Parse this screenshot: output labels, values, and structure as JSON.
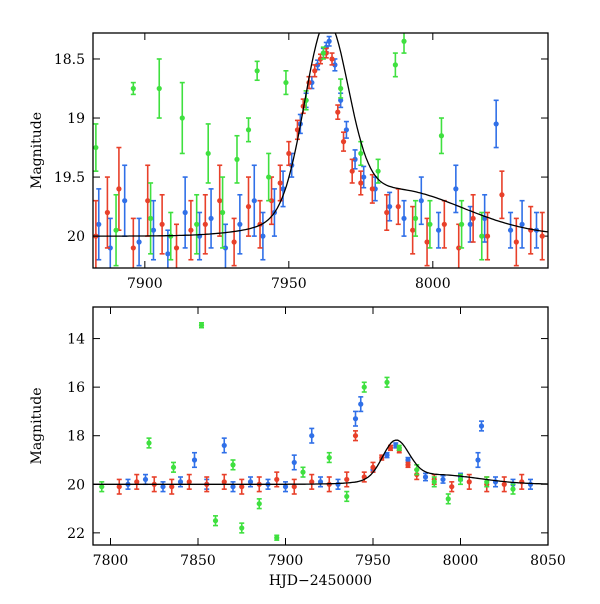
{
  "chart_data": [
    {
      "type": "scatter",
      "title": "",
      "xlabel": "",
      "ylabel": "Magnitude",
      "xlim": [
        7882,
        8040
      ],
      "ylim": [
        20.27,
        18.28
      ],
      "y_inverted": true,
      "xticks": [
        7900,
        7950,
        8000
      ],
      "yticks": [
        18.5,
        19,
        19.5,
        20
      ],
      "ytick_labels": [
        "18.5",
        "19",
        "19.5",
        "20"
      ],
      "series": [
        {
          "color": "#3070e8",
          "points": [
            [
              7884,
              19.9,
              0.3
            ],
            [
              7888,
              20.1,
              0.25
            ],
            [
              7893,
              19.7,
              0.3
            ],
            [
              7898,
              20.05,
              0.2
            ],
            [
              7903,
              19.95,
              0.25
            ],
            [
              7908,
              20.15,
              0.2
            ],
            [
              7914,
              19.8,
              0.3
            ],
            [
              7919,
              20.0,
              0.2
            ],
            [
              7923,
              19.85,
              0.25
            ],
            [
              7928,
              20.1,
              0.2
            ],
            [
              7933,
              19.9,
              0.25
            ],
            [
              7938,
              19.7,
              0.3
            ],
            [
              7941,
              20.0,
              0.2
            ],
            [
              7945,
              19.8,
              0.2
            ],
            [
              7948,
              19.6,
              0.15
            ],
            [
              7951,
              19.4,
              0.1
            ],
            [
              7954,
              19.05,
              0.08
            ],
            [
              7956,
              18.85,
              0.06
            ],
            [
              7958,
              18.7,
              0.05
            ],
            [
              7960,
              18.55,
              0.04
            ],
            [
              7962,
              18.45,
              0.04
            ],
            [
              7963,
              18.4,
              0.04
            ],
            [
              7964,
              18.35,
              0.04
            ],
            [
              7966,
              18.55,
              0.05
            ],
            [
              7968,
              18.85,
              0.06
            ],
            [
              7970,
              19.1,
              0.07
            ],
            [
              7973,
              19.35,
              0.08
            ],
            [
              7976,
              19.5,
              0.09
            ],
            [
              7980,
              19.6,
              0.1
            ],
            [
              7985,
              19.75,
              0.12
            ],
            [
              7990,
              19.85,
              0.15
            ],
            [
              7996,
              19.7,
              0.2
            ],
            [
              8002,
              19.95,
              0.15
            ],
            [
              8008,
              19.6,
              0.2
            ],
            [
              8013,
              19.9,
              0.15
            ],
            [
              8018,
              19.85,
              0.2
            ],
            [
              8022,
              19.05,
              0.2
            ],
            [
              8027,
              19.95,
              0.15
            ],
            [
              8031,
              19.9,
              0.2
            ],
            [
              8036,
              19.95,
              0.15
            ]
          ]
        },
        {
          "color": "#e8402a",
          "points": [
            [
              7883,
              20.0,
              0.3
            ],
            [
              7887,
              19.8,
              0.3
            ],
            [
              7891,
              19.6,
              0.35
            ],
            [
              7896,
              20.1,
              0.25
            ],
            [
              7901,
              19.7,
              0.3
            ],
            [
              7906,
              19.9,
              0.25
            ],
            [
              7911,
              20.1,
              0.2
            ],
            [
              7916,
              19.95,
              0.25
            ],
            [
              7921,
              19.9,
              0.25
            ],
            [
              7926,
              19.7,
              0.3
            ],
            [
              7931,
              20.05,
              0.2
            ],
            [
              7936,
              19.75,
              0.25
            ],
            [
              7940,
              19.9,
              0.2
            ],
            [
              7944,
              19.7,
              0.2
            ],
            [
              7947,
              19.55,
              0.15
            ],
            [
              7950,
              19.3,
              0.1
            ],
            [
              7953,
              19.1,
              0.08
            ],
            [
              7955,
              18.9,
              0.06
            ],
            [
              7957,
              18.7,
              0.05
            ],
            [
              7959,
              18.6,
              0.05
            ],
            [
              7961,
              18.5,
              0.04
            ],
            [
              7963,
              18.45,
              0.04
            ],
            [
              7965,
              18.5,
              0.05
            ],
            [
              7967,
              18.95,
              0.06
            ],
            [
              7969,
              19.2,
              0.08
            ],
            [
              7972,
              19.45,
              0.1
            ],
            [
              7975,
              19.55,
              0.1
            ],
            [
              7979,
              19.6,
              0.12
            ],
            [
              7984,
              19.8,
              0.15
            ],
            [
              7988,
              19.75,
              0.15
            ],
            [
              7993,
              19.95,
              0.2
            ],
            [
              7998,
              20.05,
              0.2
            ],
            [
              8004,
              19.9,
              0.2
            ],
            [
              8009,
              20.1,
              0.2
            ],
            [
              8014,
              19.85,
              0.2
            ],
            [
              8019,
              20.0,
              0.2
            ],
            [
              8024,
              19.65,
              0.2
            ],
            [
              8029,
              20.05,
              0.2
            ],
            [
              8034,
              19.95,
              0.2
            ],
            [
              8038,
              20.0,
              0.2
            ]
          ]
        },
        {
          "color": "#3fe03f",
          "points": [
            [
              7883,
              19.25,
              0.2
            ],
            [
              7890,
              19.95,
              0.3
            ],
            [
              7896,
              18.75,
              0.05
            ],
            [
              7902,
              19.85,
              0.3
            ],
            [
              7905,
              18.75,
              0.25
            ],
            [
              7909,
              20.0,
              0.2
            ],
            [
              7913,
              19.0,
              0.3
            ],
            [
              7918,
              19.9,
              0.25
            ],
            [
              7922,
              19.3,
              0.25
            ],
            [
              7927,
              19.8,
              0.3
            ],
            [
              7932,
              19.35,
              0.2
            ],
            [
              7936,
              19.1,
              0.1
            ],
            [
              7939,
              18.6,
              0.08
            ],
            [
              7943,
              19.5,
              0.2
            ],
            [
              7949,
              18.7,
              0.1
            ],
            [
              7956,
              18.85,
              0.08
            ],
            [
              7962,
              18.45,
              0.05
            ],
            [
              7968,
              18.75,
              0.08
            ],
            [
              7975,
              19.3,
              0.1
            ],
            [
              7981,
              19.45,
              0.1
            ],
            [
              7987,
              18.55,
              0.1
            ],
            [
              7990,
              18.35,
              0.1
            ],
            [
              7994,
              19.85,
              0.15
            ],
            [
              7999,
              19.9,
              0.2
            ],
            [
              8003,
              19.15,
              0.15
            ],
            [
              8010,
              19.9,
              0.2
            ],
            [
              8017,
              20.0,
              0.2
            ]
          ]
        }
      ]
    },
    {
      "type": "scatter",
      "title": "",
      "xlabel": "HJD−2450000",
      "ylabel": "Magnitude",
      "xlim": [
        7790,
        8050
      ],
      "ylim": [
        22.5,
        12.7
      ],
      "y_inverted": true,
      "xticks": [
        7800,
        7850,
        7900,
        7950,
        8000,
        8050
      ],
      "yticks": [
        14,
        16,
        18,
        20,
        22
      ],
      "ytick_labels": [
        "14",
        "16",
        "18",
        "20",
        "22"
      ],
      "series": [
        {
          "color": "#3070e8",
          "points": [
            [
              7810,
              20.0,
              0.2
            ],
            [
              7820,
              19.8,
              0.2
            ],
            [
              7830,
              20.1,
              0.2
            ],
            [
              7840,
              19.9,
              0.2
            ],
            [
              7848,
              19.0,
              0.3
            ],
            [
              7855,
              20.0,
              0.2
            ],
            [
              7865,
              18.4,
              0.3
            ],
            [
              7870,
              20.1,
              0.2
            ],
            [
              7880,
              19.9,
              0.2
            ],
            [
              7890,
              20.0,
              0.2
            ],
            [
              7900,
              20.1,
              0.2
            ],
            [
              7905,
              19.1,
              0.3
            ],
            [
              7915,
              18.0,
              0.3
            ],
            [
              7920,
              19.9,
              0.2
            ],
            [
              7930,
              20.0,
              0.2
            ],
            [
              7940,
              17.3,
              0.3
            ],
            [
              7943,
              16.7,
              0.3
            ],
            [
              7950,
              19.4,
              0.1
            ],
            [
              7958,
              18.8,
              0.1
            ],
            [
              7963,
              18.4,
              0.1
            ],
            [
              7970,
              19.0,
              0.1
            ],
            [
              7980,
              19.7,
              0.15
            ],
            [
              7990,
              19.8,
              0.15
            ],
            [
              8000,
              19.7,
              0.15
            ],
            [
              8010,
              19.0,
              0.3
            ],
            [
              8012,
              17.6,
              0.2
            ],
            [
              8020,
              19.9,
              0.2
            ],
            [
              8030,
              20.0,
              0.2
            ],
            [
              8040,
              20.0,
              0.2
            ]
          ]
        },
        {
          "color": "#e8402a",
          "points": [
            [
              7805,
              20.1,
              0.3
            ],
            [
              7815,
              19.9,
              0.3
            ],
            [
              7825,
              20.0,
              0.3
            ],
            [
              7835,
              20.1,
              0.3
            ],
            [
              7845,
              19.9,
              0.3
            ],
            [
              7855,
              20.0,
              0.3
            ],
            [
              7865,
              19.9,
              0.3
            ],
            [
              7875,
              20.1,
              0.3
            ],
            [
              7885,
              20.0,
              0.3
            ],
            [
              7895,
              19.8,
              0.3
            ],
            [
              7905,
              20.1,
              0.3
            ],
            [
              7915,
              19.9,
              0.3
            ],
            [
              7925,
              20.0,
              0.3
            ],
            [
              7935,
              19.8,
              0.3
            ],
            [
              7940,
              18.0,
              0.2
            ],
            [
              7945,
              19.7,
              0.2
            ],
            [
              7950,
              19.3,
              0.2
            ],
            [
              7955,
              18.9,
              0.1
            ],
            [
              7960,
              18.5,
              0.1
            ],
            [
              7965,
              18.6,
              0.1
            ],
            [
              7970,
              19.2,
              0.1
            ],
            [
              7975,
              19.6,
              0.2
            ],
            [
              7985,
              19.8,
              0.2
            ],
            [
              7995,
              20.1,
              0.2
            ],
            [
              8005,
              19.9,
              0.3
            ],
            [
              8015,
              20.0,
              0.3
            ],
            [
              8025,
              20.0,
              0.3
            ],
            [
              8035,
              19.9,
              0.3
            ]
          ]
        },
        {
          "color": "#3fe03f",
          "points": [
            [
              7795,
              20.1,
              0.2
            ],
            [
              7822,
              18.3,
              0.2
            ],
            [
              7836,
              19.3,
              0.2
            ],
            [
              7852,
              13.45,
              0.1
            ],
            [
              7860,
              21.5,
              0.2
            ],
            [
              7870,
              19.2,
              0.2
            ],
            [
              7875,
              21.8,
              0.2
            ],
            [
              7885,
              20.8,
              0.2
            ],
            [
              7895,
              22.2,
              0.1
            ],
            [
              7910,
              19.5,
              0.2
            ],
            [
              7925,
              18.9,
              0.2
            ],
            [
              7935,
              20.5,
              0.2
            ],
            [
              7945,
              16.0,
              0.2
            ],
            [
              7958,
              15.8,
              0.2
            ],
            [
              7965,
              18.5,
              0.1
            ],
            [
              7975,
              19.4,
              0.2
            ],
            [
              7985,
              19.9,
              0.2
            ],
            [
              7993,
              20.6,
              0.2
            ],
            [
              8000,
              19.8,
              0.2
            ],
            [
              8015,
              19.9,
              0.2
            ],
            [
              8030,
              20.2,
              0.2
            ]
          ]
        }
      ]
    }
  ]
}
